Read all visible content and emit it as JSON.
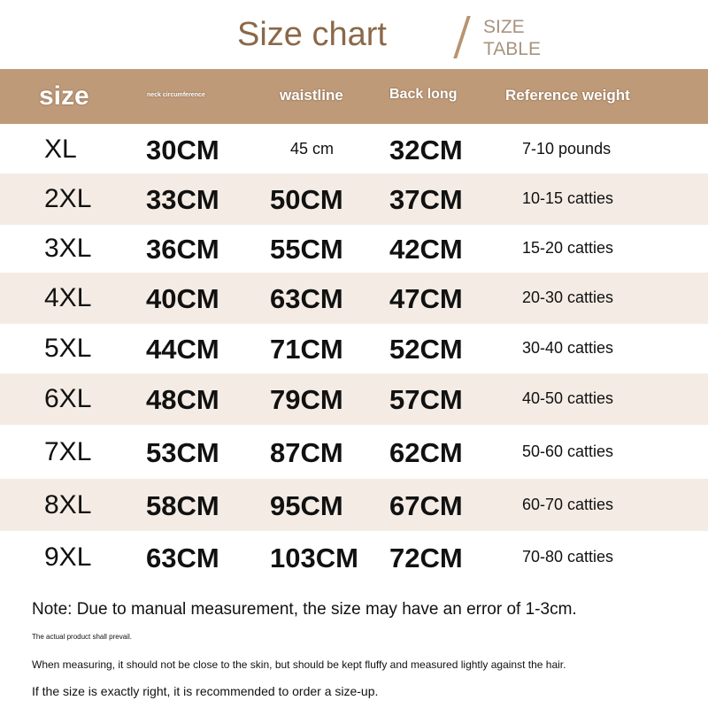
{
  "title": "Size chart",
  "subtitle_line1": "SIZE",
  "subtitle_line2": "TABLE",
  "headers": [
    "size",
    "neck circumference",
    "waistline",
    "Back long",
    "Reference weight"
  ],
  "rows": [
    [
      "XL",
      "30CM",
      "45 cm",
      "32CM",
      "7-10 pounds"
    ],
    [
      "2XL",
      "33CM",
      "50CM",
      "37CM",
      "10-15 catties"
    ],
    [
      "3XL",
      "36CM",
      "55CM",
      "42CM",
      "15-20 catties"
    ],
    [
      "4XL",
      "40CM",
      "63CM",
      "47CM",
      "20-30 catties"
    ],
    [
      "5XL",
      "44CM",
      "71CM",
      "52CM",
      "30-40 catties"
    ],
    [
      "6XL",
      "48CM",
      "79CM",
      "57CM",
      "40-50 catties"
    ],
    [
      "7XL",
      "53CM",
      "87CM",
      "62CM",
      "50-60 catties"
    ],
    [
      "8XL",
      "58CM",
      "95CM",
      "67CM",
      "60-70 catties"
    ],
    [
      "9XL",
      "63CM",
      "103CM",
      "72CM",
      "70-80 catties"
    ]
  ],
  "notes": [
    "Note: Due to manual measurement, the size may have an error of 1-3cm.",
    "The actual product shall prevail.",
    "When measuring, it should not be close to the skin, but should be kept fluffy and measured lightly against the hair.",
    "If the size is exactly right, it is recommended to order a size-up."
  ],
  "colors": {
    "header": "#bf9a78",
    "stripe": "#f4ece4",
    "title": "#8b6848"
  }
}
